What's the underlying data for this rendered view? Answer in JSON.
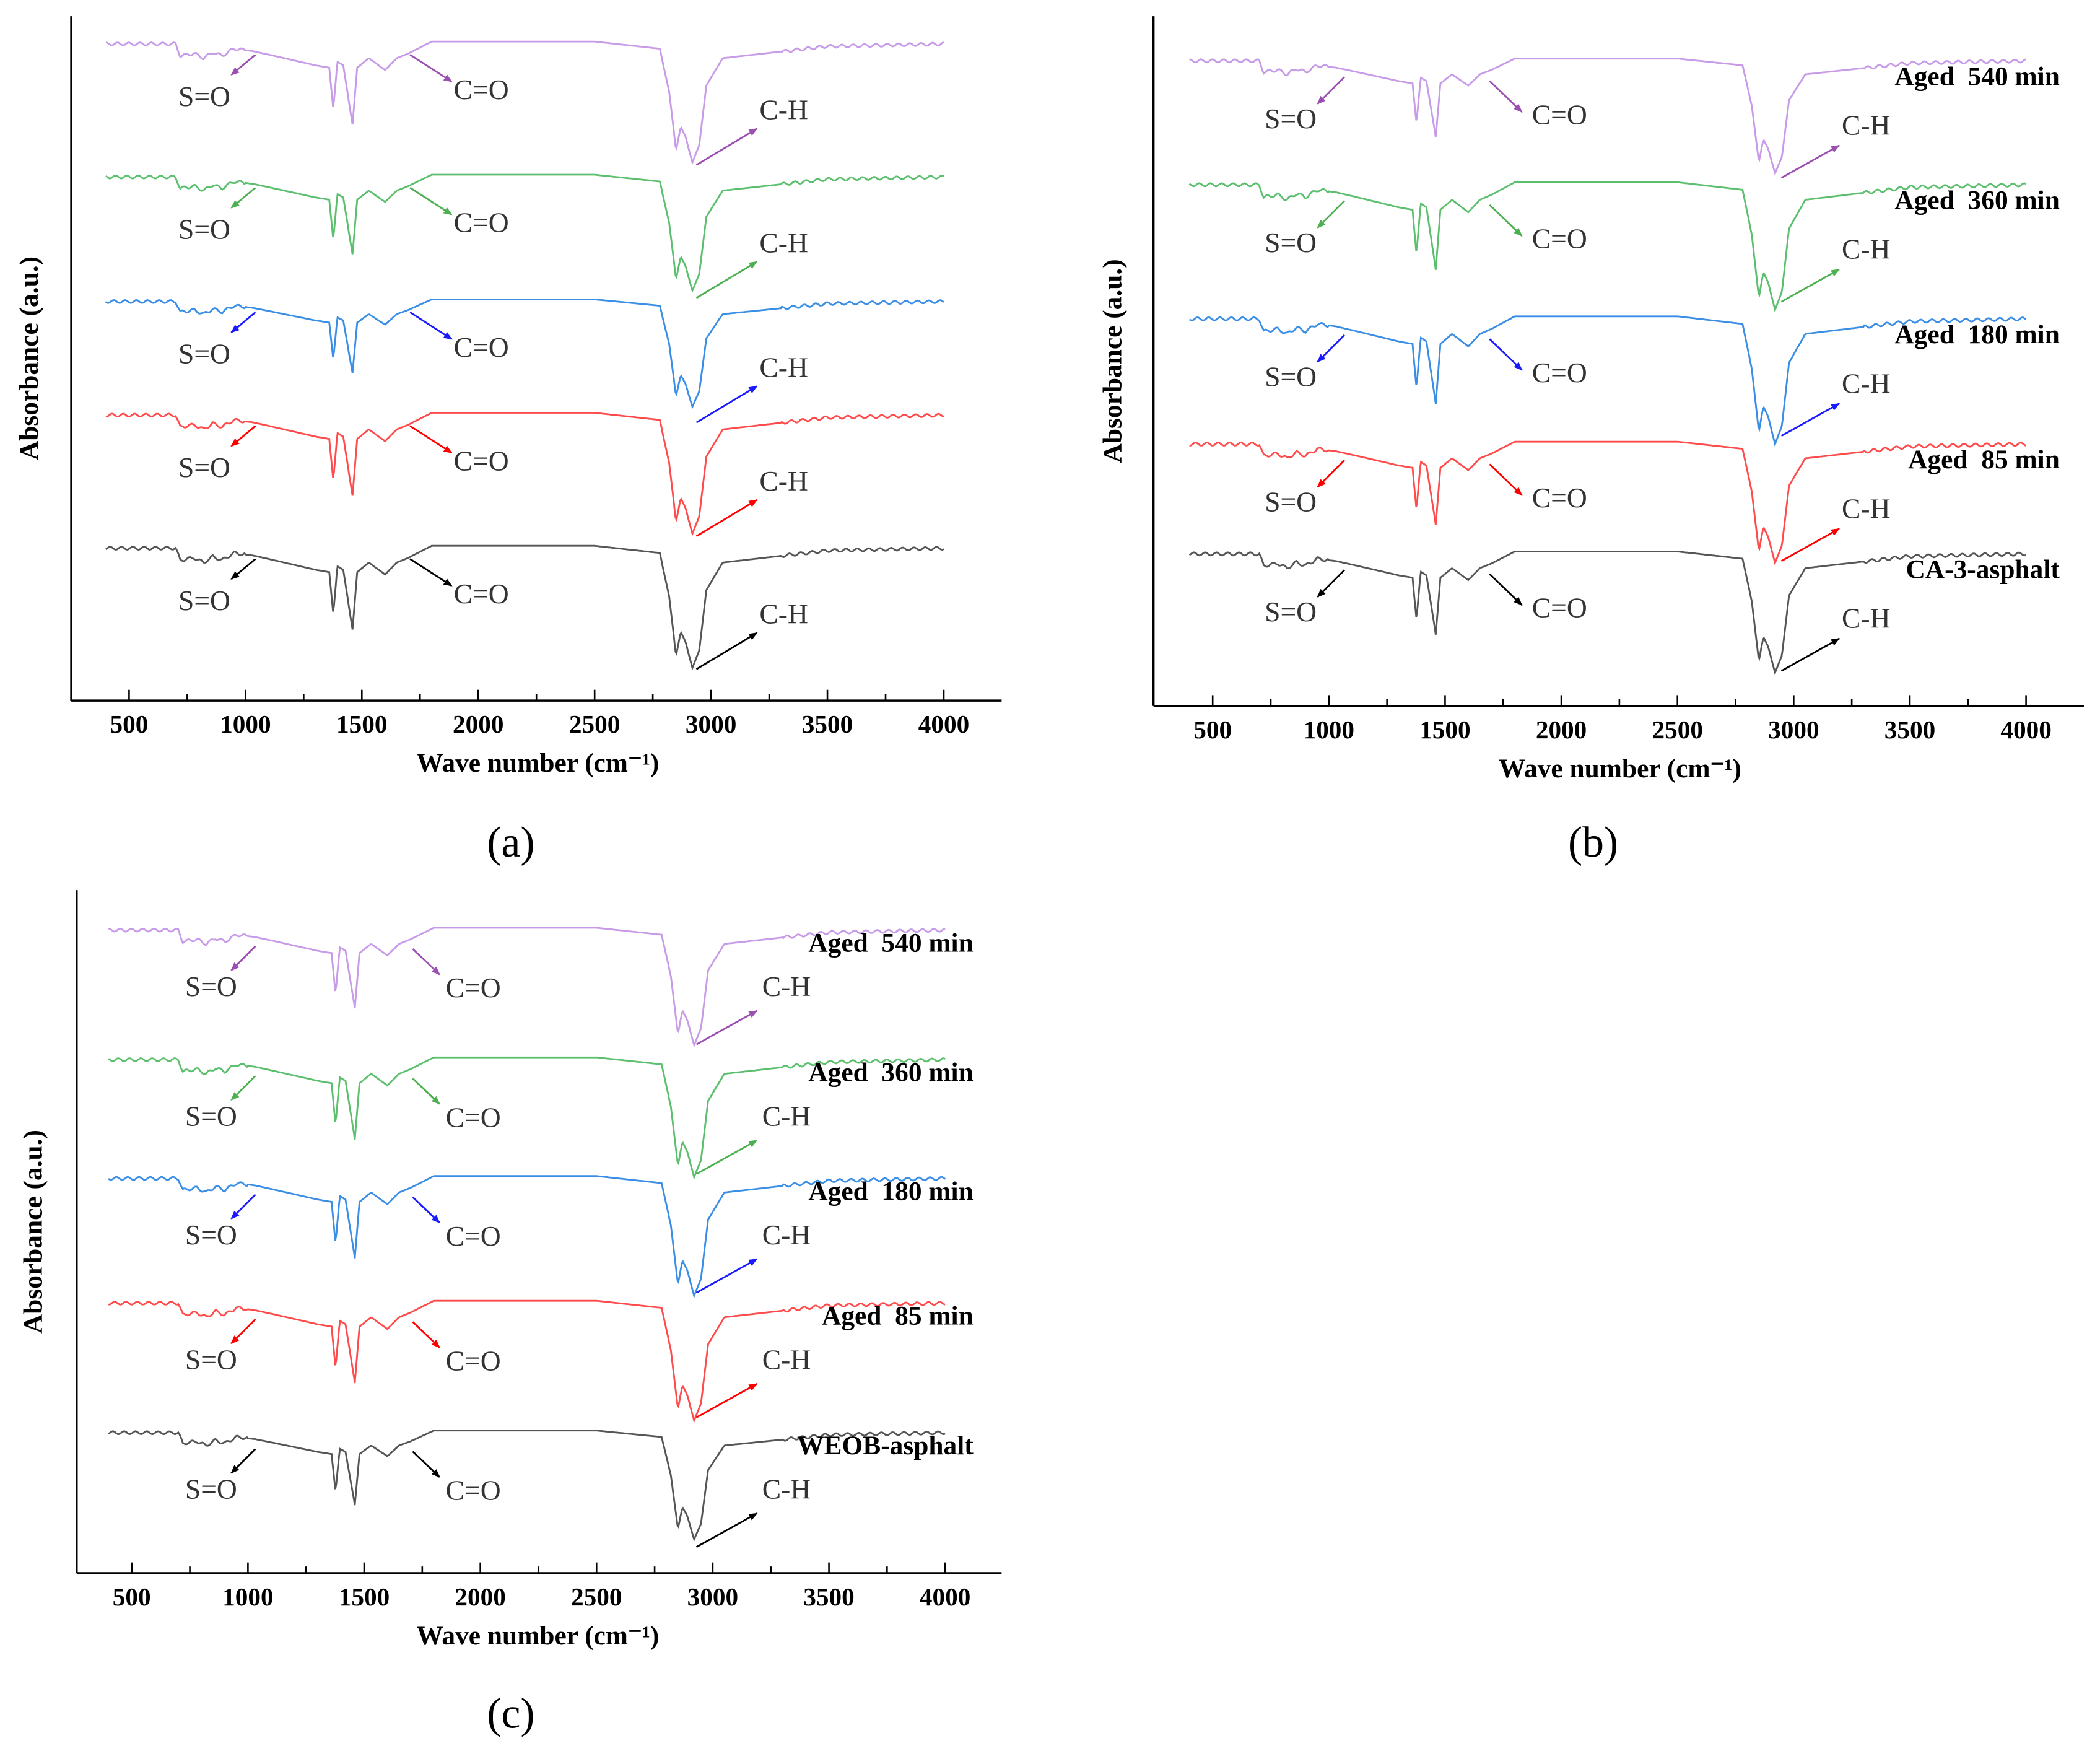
{
  "chart_data": [
    {
      "panel_label": "(a)",
      "type": "line",
      "xlabel": "Wave number (cm⁻¹)",
      "ylabel": "Absorbance (a.u.)",
      "xlim": [
        300,
        4250
      ],
      "ylim": [
        0,
        5.66
      ],
      "xticks": [
        500,
        1000,
        1500,
        2000,
        2500,
        3000,
        3500,
        4000
      ],
      "grid": false,
      "annotations": [
        "S=O",
        "C=O",
        "C-H"
      ],
      "series": [
        {
          "color": "#c89be8",
          "arrow_color": "#9b4fb0",
          "baseline": 5.43,
          "depth": 0.98
        },
        {
          "color": "#5cbf6e",
          "arrow_color": "#4caf50",
          "baseline": 4.33,
          "depth": 0.94
        },
        {
          "color": "#3a8ee6",
          "arrow_color": "#1a1aff",
          "baseline": 3.3,
          "depth": 0.87
        },
        {
          "color": "#ff4b4b",
          "arrow_color": "#ff0000",
          "baseline": 2.36,
          "depth": 0.98
        },
        {
          "color": "#555555",
          "arrow_color": "#000000",
          "baseline": 1.26,
          "depth": 0.99
        }
      ]
    },
    {
      "panel_label": "(b)",
      "type": "line",
      "xlabel": "Wave number (cm⁻¹)",
      "ylabel": "Absorbance (a.u.)",
      "xlim": [
        250,
        4250
      ],
      "ylim": [
        0,
        5.4
      ],
      "xticks": [
        500,
        1000,
        1500,
        2000,
        2500,
        3000,
        3500,
        4000
      ],
      "grid": false,
      "annotations": [
        "S=O",
        "C=O",
        "C-H"
      ],
      "series": [
        {
          "name": "Aged  540 min",
          "color": "#c89be8",
          "arrow_color": "#9b4fb0",
          "baseline": 5.05,
          "depth": 0.88
        },
        {
          "name": "Aged  360 min",
          "color": "#5cbf6e",
          "arrow_color": "#4caf50",
          "baseline": 4.08,
          "depth": 0.98
        },
        {
          "name": "Aged  180 min",
          "color": "#3a8ee6",
          "arrow_color": "#1a1aff",
          "baseline": 3.03,
          "depth": 0.98
        },
        {
          "name": "Aged  85 min",
          "color": "#ff4b4b",
          "arrow_color": "#ff0000",
          "baseline": 2.05,
          "depth": 0.93
        },
        {
          "name": "CA-3-asphalt",
          "color": "#555555",
          "arrow_color": "#000000",
          "baseline": 1.19,
          "depth": 0.93
        }
      ]
    },
    {
      "panel_label": "(c)",
      "type": "line",
      "xlabel": "Wave number (cm⁻¹)",
      "ylabel": "Absorbance (a.u.)",
      "xlim": [
        250,
        4250
      ],
      "ylim": [
        0,
        5.64
      ],
      "xticks": [
        500,
        1000,
        1500,
        2000,
        2500,
        3000,
        3500,
        4000
      ],
      "grid": false,
      "annotations": [
        "S=O",
        "C=O",
        "C-H"
      ],
      "series": [
        {
          "name": "Aged  540 min",
          "color": "#c89be8",
          "arrow_color": "#9b4fb0",
          "baseline": 5.31,
          "depth": 0.95
        },
        {
          "name": "Aged  360 min",
          "color": "#5cbf6e",
          "arrow_color": "#4caf50",
          "baseline": 4.24,
          "depth": 0.97
        },
        {
          "name": "Aged  180 min",
          "color": "#3a8ee6",
          "arrow_color": "#1a1aff",
          "baseline": 3.26,
          "depth": 0.97
        },
        {
          "name": "Aged  85 min",
          "color": "#ff4b4b",
          "arrow_color": "#ff0000",
          "baseline": 2.23,
          "depth": 0.97
        },
        {
          "name": "WEOB-asphalt",
          "color": "#555555",
          "arrow_color": "#000000",
          "baseline": 1.16,
          "depth": 0.88
        }
      ]
    }
  ],
  "spectrum_shape": {
    "x": [
      400,
      700,
      720,
      780,
      820,
      860,
      900,
      950,
      1030,
      1100,
      1300,
      1360,
      1377,
      1395,
      1420,
      1460,
      1480,
      1530,
      1600,
      1650,
      1700,
      1800,
      2500,
      2780,
      2820,
      2850,
      2870,
      2890,
      2920,
      2950,
      2980,
      3050,
      3500,
      4000
    ],
    "y": [
      0,
      0,
      -0.1,
      -0.08,
      -0.12,
      -0.07,
      -0.1,
      -0.04,
      -0.06,
      -0.09,
      -0.18,
      -0.2,
      -0.55,
      -0.15,
      -0.18,
      -0.68,
      -0.2,
      -0.12,
      -0.22,
      -0.12,
      -0.08,
      0.02,
      0.02,
      -0.04,
      -0.4,
      -0.9,
      -0.7,
      -0.78,
      -1.0,
      -0.85,
      -0.35,
      -0.12,
      -0.02,
      0
    ]
  }
}
